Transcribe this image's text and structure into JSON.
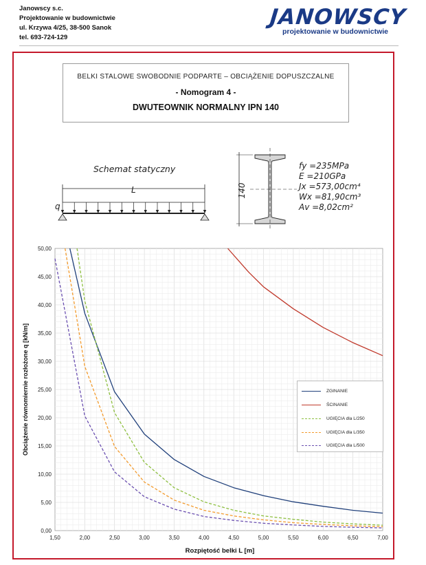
{
  "header": {
    "company_line1": "Janowscy s.c.",
    "company_line2": "Projektowanie w budownictwie",
    "company_line3": "ul. Krzywa 4/25, 38-500 Sanok",
    "company_line4": "tel. 693-724-129",
    "logo_main": "JANOWSCY",
    "logo_sub": "projektowanie w budownictwie"
  },
  "title": {
    "line1": "BELKI STALOWE SWOBODNIE PODPARTE – OBCIĄŻENIE DOPUSZCZALNE",
    "line2": "- Nomogram 4 -",
    "line3": "DWUTEOWNIK NORMALNY IPN 140"
  },
  "schema": {
    "label": "Schemat statyczny",
    "span_label": "L",
    "load_label": "q",
    "section_height": "140"
  },
  "params": {
    "fy": "fy =235MPa",
    "E": "E =210GPa",
    "Jx": "Jx =573,00cm⁴",
    "Wx": "Wx =81,90cm³",
    "Av": "Av =8,02cm²"
  },
  "colors": {
    "frame": "#c4182a",
    "zginanie": "#1f3f7a",
    "scinanie": "#c0392b",
    "l250": "#8dbf3f",
    "l350": "#f39a2b",
    "l500": "#6a4fb0"
  },
  "chart_data": {
    "type": "line",
    "xlabel": "Rozpiętość belki L [m]",
    "ylabel": "Obciążenie równomiernie rozłożone q [kN/m]",
    "xlim": [
      1.5,
      7.0
    ],
    "ylim": [
      0,
      50
    ],
    "x_ticks": [
      "1,50",
      "2,00",
      "2,50",
      "3,00",
      "3,50",
      "4,00",
      "4,50",
      "5,00",
      "5,50",
      "6,00",
      "6,50",
      "7,00"
    ],
    "y_ticks": [
      "0,00",
      "5,00",
      "10,00",
      "15,00",
      "20,00",
      "25,00",
      "30,00",
      "35,00",
      "40,00",
      "45,00",
      "50,00"
    ],
    "grid": true,
    "legend_position": "right",
    "series": [
      {
        "name": "ZGINANIE",
        "dash": false,
        "x": [
          1.75,
          2.0,
          2.5,
          3.0,
          3.5,
          4.0,
          4.5,
          5.0,
          5.5,
          6.0,
          6.5,
          7.0
        ],
        "values": [
          50.0,
          38.5,
          24.6,
          17.1,
          12.6,
          9.6,
          7.6,
          6.2,
          5.1,
          4.3,
          3.6,
          3.1
        ]
      },
      {
        "name": "ŚCINANIE",
        "dash": false,
        "x": [
          4.4,
          4.75,
          5.0,
          5.5,
          6.0,
          6.5,
          7.0
        ],
        "values": [
          50.0,
          45.8,
          43.2,
          39.3,
          36.0,
          33.3,
          31.0
        ]
      },
      {
        "name": "UGIĘCIA dla L/250",
        "dash": true,
        "x": [
          1.87,
          2.0,
          2.5,
          3.0,
          3.5,
          4.0,
          4.5,
          5.0,
          5.5,
          6.0,
          6.5,
          7.0
        ],
        "values": [
          50.0,
          40.7,
          20.9,
          12.1,
          7.6,
          5.1,
          3.6,
          2.6,
          2.0,
          1.5,
          1.2,
          0.95
        ]
      },
      {
        "name": "UGIĘCIA dla L/350",
        "dash": true,
        "x": [
          1.67,
          2.0,
          2.5,
          3.0,
          3.5,
          4.0,
          4.5,
          5.0,
          5.5,
          6.0,
          6.5,
          7.0
        ],
        "values": [
          50.0,
          29.1,
          14.9,
          8.6,
          5.4,
          3.6,
          2.6,
          1.9,
          1.4,
          1.1,
          0.85,
          0.68
        ]
      },
      {
        "name": "UGIĘCIA dla L/500",
        "dash": true,
        "x": [
          1.5,
          2.0,
          2.5,
          3.0,
          3.5,
          4.0,
          4.5,
          5.0,
          5.5,
          6.0,
          6.5,
          7.0
        ],
        "values": [
          48.2,
          20.3,
          10.4,
          6.0,
          3.8,
          2.5,
          1.8,
          1.3,
          1.0,
          0.75,
          0.59,
          0.47
        ]
      }
    ]
  }
}
